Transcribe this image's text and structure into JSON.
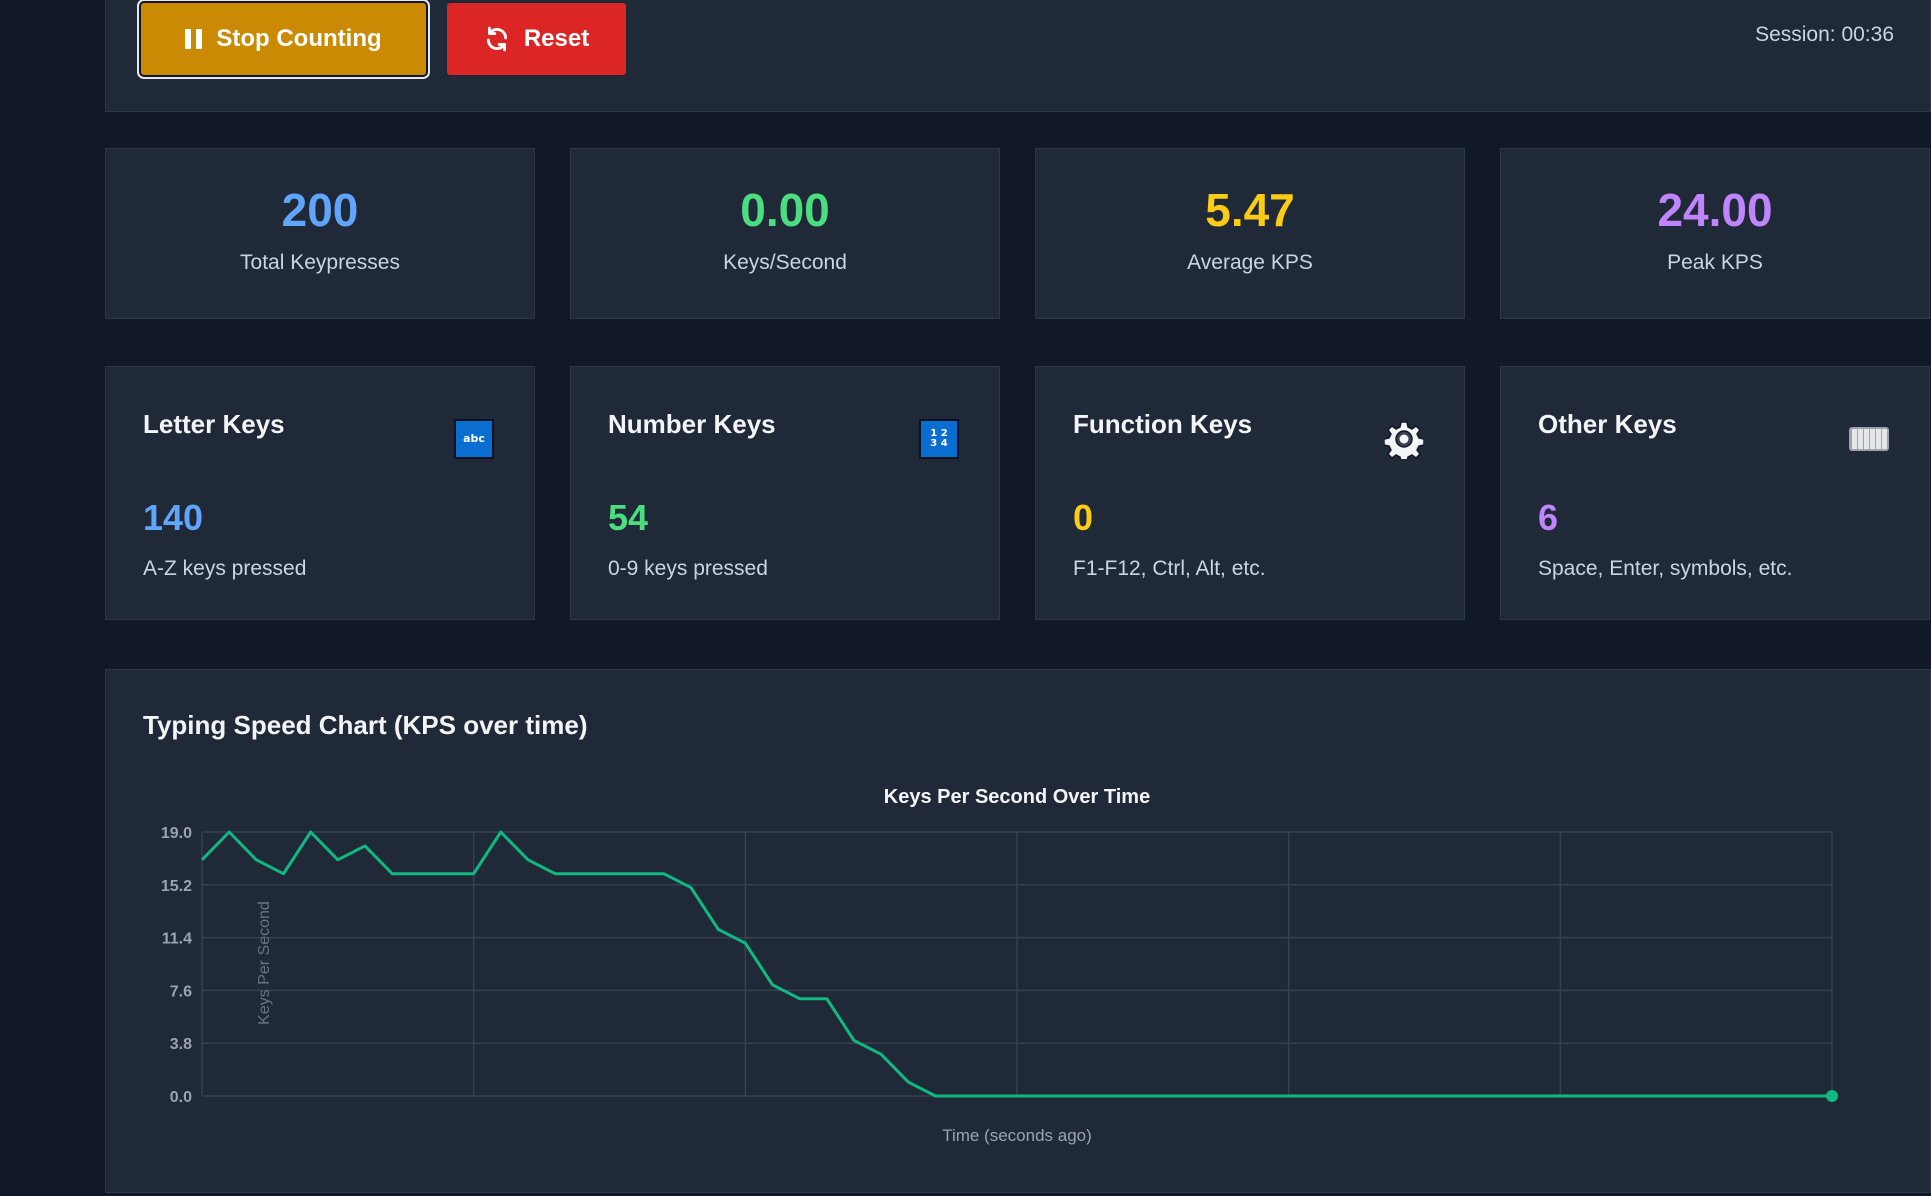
{
  "controls": {
    "stop_label": "Stop Counting",
    "reset_label": "Reset",
    "session": "Session: 00:36"
  },
  "colors": {
    "blue": "#60a5fa",
    "green": "#4ade80",
    "yellow": "#facc15",
    "purple": "#c084fc",
    "line": "#10b981"
  },
  "stats": [
    {
      "value": "200",
      "label": "Total Keypresses"
    },
    {
      "value": "0.00",
      "label": "Keys/Second"
    },
    {
      "value": "5.47",
      "label": "Average KPS"
    },
    {
      "value": "24.00",
      "label": "Peak KPS"
    }
  ],
  "key_cards": [
    {
      "title": "Letter Keys",
      "count": "140",
      "desc": "A-Z keys pressed",
      "icon": "abc-icon",
      "icon_text": "abc"
    },
    {
      "title": "Number Keys",
      "count": "54",
      "desc": "0-9 keys pressed",
      "icon": "numbers-icon",
      "icon_text": "1 2\n3 4"
    },
    {
      "title": "Function Keys",
      "count": "0",
      "desc": "F1-F12, Ctrl, Alt, etc.",
      "icon": "gear-icon"
    },
    {
      "title": "Other Keys",
      "count": "6",
      "desc": "Space, Enter, symbols, etc.",
      "icon": "keyboard-icon"
    }
  ],
  "chart_section": {
    "heading": "Typing Speed Chart (KPS over time)"
  },
  "chart_data": {
    "type": "line",
    "title": "Keys Per Second Over Time",
    "xlabel": "Time (seconds ago)",
    "ylabel": "Keys Per Second",
    "ylim": [
      0,
      19
    ],
    "yticks": [
      "0.0",
      "3.8",
      "7.6",
      "11.4",
      "15.2",
      "19.0"
    ],
    "grid": true,
    "values": [
      17,
      19,
      17,
      16,
      19,
      17,
      18,
      16,
      16,
      16,
      16,
      19,
      17,
      16,
      16,
      16,
      16,
      16,
      15,
      12,
      11,
      8,
      7,
      7,
      4,
      3,
      1,
      0,
      0,
      0,
      0,
      0,
      0,
      0,
      0,
      0,
      0,
      0,
      0,
      0,
      0,
      0,
      0,
      0,
      0,
      0,
      0,
      0,
      0,
      0,
      0,
      0,
      0,
      0,
      0,
      0,
      0,
      0,
      0,
      0,
      0
    ]
  }
}
